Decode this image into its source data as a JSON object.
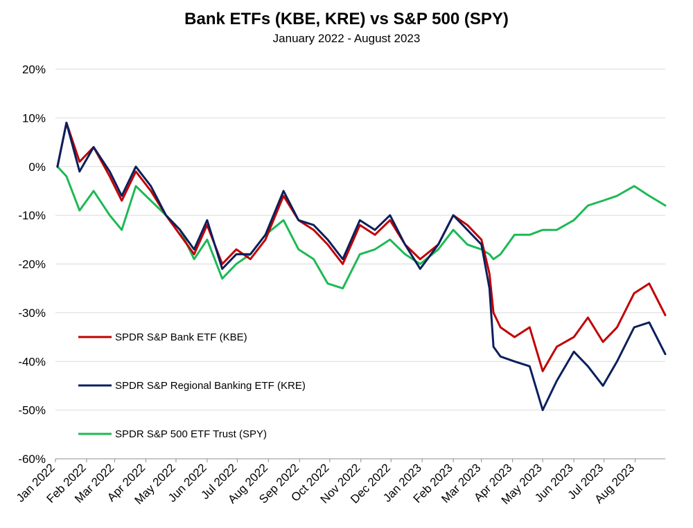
{
  "chart_data": {
    "type": "line",
    "title": "Bank ETFs (KBE, KRE) vs S&P 500 (SPY)",
    "subtitle": "January 2022 - August 2023",
    "ylim": [
      -60,
      20
    ],
    "y_ticks": [
      "20%",
      "10%",
      "0%",
      "-10%",
      "-20%",
      "-30%",
      "-40%",
      "-50%",
      "-60%"
    ],
    "y_tick_values": [
      20,
      10,
      0,
      -10,
      -20,
      -30,
      -40,
      -50,
      -60
    ],
    "x_ticks": [
      "Jan 2022",
      "Feb 2022",
      "Mar 2022",
      "Apr 2022",
      "May 2022",
      "Jun 2022",
      "Jul 2022",
      "Aug 2022",
      "Sep 2022",
      "Oct 2022",
      "Nov 2022",
      "Dec 2022",
      "Jan 2023",
      "Feb 2023",
      "Mar 2023",
      "Apr 2023",
      "May 2023",
      "Jun 2023",
      "Jul 2023",
      "Aug 2023"
    ],
    "grid": "horizontal",
    "legend_position": "center-left",
    "series": [
      {
        "name": "SPDR S&P Bank ETF (KBE)",
        "color": "#C00000",
        "x": [
          "2022-01-03",
          "2022-01-12",
          "2022-01-25",
          "2022-02-08",
          "2022-02-24",
          "2022-03-08",
          "2022-03-22",
          "2022-04-06",
          "2022-04-21",
          "2022-05-05",
          "2022-05-19",
          "2022-06-01",
          "2022-06-16",
          "2022-06-30",
          "2022-07-14",
          "2022-07-29",
          "2022-08-16",
          "2022-08-31",
          "2022-09-15",
          "2022-09-29",
          "2022-10-14",
          "2022-10-31",
          "2022-11-15",
          "2022-11-30",
          "2022-12-15",
          "2022-12-30",
          "2023-01-17",
          "2023-02-01",
          "2023-02-15",
          "2023-03-01",
          "2023-03-09",
          "2023-03-13",
          "2023-03-20",
          "2023-04-03",
          "2023-04-18",
          "2023-05-01",
          "2023-05-15",
          "2023-06-01",
          "2023-06-15",
          "2023-06-30",
          "2023-07-14",
          "2023-07-31",
          "2023-08-15",
          "2023-08-31"
        ],
        "y": [
          0,
          9,
          1,
          4,
          -2,
          -7,
          -1,
          -5,
          -10,
          -14,
          -18,
          -12,
          -20,
          -17,
          -19,
          -15,
          -6,
          -11,
          -13,
          -16,
          -20,
          -12,
          -14,
          -11,
          -16,
          -19,
          -16,
          -10,
          -12,
          -15,
          -22,
          -30,
          -33,
          -35,
          -33,
          -42,
          -37,
          -35,
          -31,
          -36,
          -33,
          -26,
          -24,
          -30.5
        ]
      },
      {
        "name": "SPDR S&P Regional Banking ETF (KRE)",
        "color": "#0B1F5C",
        "x": [
          "2022-01-03",
          "2022-01-12",
          "2022-01-25",
          "2022-02-08",
          "2022-02-24",
          "2022-03-08",
          "2022-03-22",
          "2022-04-06",
          "2022-04-21",
          "2022-05-05",
          "2022-05-19",
          "2022-06-01",
          "2022-06-16",
          "2022-06-30",
          "2022-07-14",
          "2022-07-29",
          "2022-08-16",
          "2022-08-31",
          "2022-09-15",
          "2022-09-29",
          "2022-10-14",
          "2022-10-31",
          "2022-11-15",
          "2022-11-30",
          "2022-12-15",
          "2022-12-30",
          "2023-01-17",
          "2023-02-01",
          "2023-02-15",
          "2023-03-01",
          "2023-03-09",
          "2023-03-13",
          "2023-03-20",
          "2023-04-03",
          "2023-04-18",
          "2023-05-01",
          "2023-05-15",
          "2023-06-01",
          "2023-06-15",
          "2023-06-30",
          "2023-07-14",
          "2023-07-31",
          "2023-08-15",
          "2023-08-31"
        ],
        "y": [
          0,
          9,
          -1,
          4,
          -1,
          -6,
          0,
          -4,
          -10,
          -13,
          -17,
          -11,
          -21,
          -18,
          -18,
          -14,
          -5,
          -11,
          -12,
          -15,
          -19,
          -11,
          -13,
          -10,
          -16,
          -21,
          -16,
          -10,
          -13,
          -16,
          -25,
          -37,
          -39,
          -40,
          -41,
          -50,
          -44,
          -38,
          -41,
          -45,
          -40,
          -33,
          -32,
          -38.5
        ]
      },
      {
        "name": "SPDR S&P 500 ETF Trust (SPY)",
        "color": "#1DB954",
        "x": [
          "2022-01-03",
          "2022-01-12",
          "2022-01-25",
          "2022-02-08",
          "2022-02-24",
          "2022-03-08",
          "2022-03-22",
          "2022-04-06",
          "2022-04-21",
          "2022-05-05",
          "2022-05-19",
          "2022-06-01",
          "2022-06-16",
          "2022-06-30",
          "2022-07-14",
          "2022-07-29",
          "2022-08-16",
          "2022-08-31",
          "2022-09-15",
          "2022-09-29",
          "2022-10-14",
          "2022-10-31",
          "2022-11-15",
          "2022-11-30",
          "2022-12-15",
          "2022-12-30",
          "2023-01-17",
          "2023-02-01",
          "2023-02-15",
          "2023-03-01",
          "2023-03-09",
          "2023-03-13",
          "2023-03-20",
          "2023-04-03",
          "2023-04-18",
          "2023-05-01",
          "2023-05-15",
          "2023-06-01",
          "2023-06-15",
          "2023-06-30",
          "2023-07-14",
          "2023-07-31",
          "2023-08-15",
          "2023-08-31"
        ],
        "y": [
          0,
          -2,
          -9,
          -5,
          -10,
          -13,
          -4,
          -7,
          -10,
          -13,
          -19,
          -15,
          -23,
          -20,
          -18,
          -14,
          -11,
          -17,
          -19,
          -24,
          -25,
          -18,
          -17,
          -15,
          -18,
          -20,
          -17,
          -13,
          -16,
          -17,
          -18,
          -19,
          -18,
          -14,
          -14,
          -13,
          -13,
          -11,
          -8,
          -7,
          -6,
          -4,
          -6,
          -8
        ]
      }
    ]
  }
}
